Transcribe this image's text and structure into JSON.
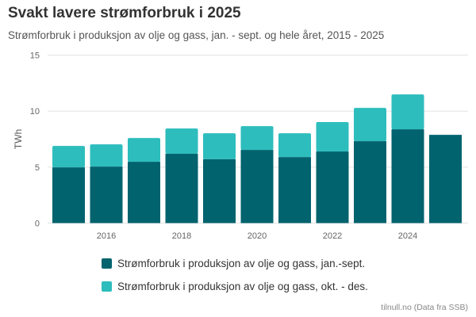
{
  "chart_data": {
    "type": "bar",
    "stacked": true,
    "title": "Svakt lavere strømforbruk i 2025",
    "subtitle": "Strømforbruk i produksjon av olje og gass, jan. - sept. og hele året, 2015 - 2025",
    "xlabel": "",
    "ylabel": "TWh",
    "ylim": [
      0,
      15
    ],
    "yticks": [
      "0",
      "5",
      "10",
      "15"
    ],
    "xticks": [
      "2016",
      "2018",
      "2020",
      "2022",
      "2024"
    ],
    "categories": [
      2015,
      2016,
      2017,
      2018,
      2019,
      2020,
      2021,
      2022,
      2023,
      2024,
      2025
    ],
    "series": [
      {
        "name": "Strømforbruk i produksjon av olje og gass, jan.-sept.",
        "color": "#00636e",
        "values": [
          4.98,
          5.05,
          5.48,
          6.19,
          5.71,
          6.54,
          5.9,
          6.4,
          7.32,
          8.38,
          7.88
        ]
      },
      {
        "name": "Strømforbruk i produksjon av olje og gass, okt. - des.",
        "color": "#2ebdbd",
        "values": [
          1.91,
          1.98,
          2.12,
          2.26,
          2.31,
          2.12,
          2.12,
          2.62,
          2.97,
          3.11,
          null
        ]
      }
    ],
    "grid": true,
    "legend_position": "bottom"
  },
  "credit": "tilnull.no (Data fra SSB)"
}
